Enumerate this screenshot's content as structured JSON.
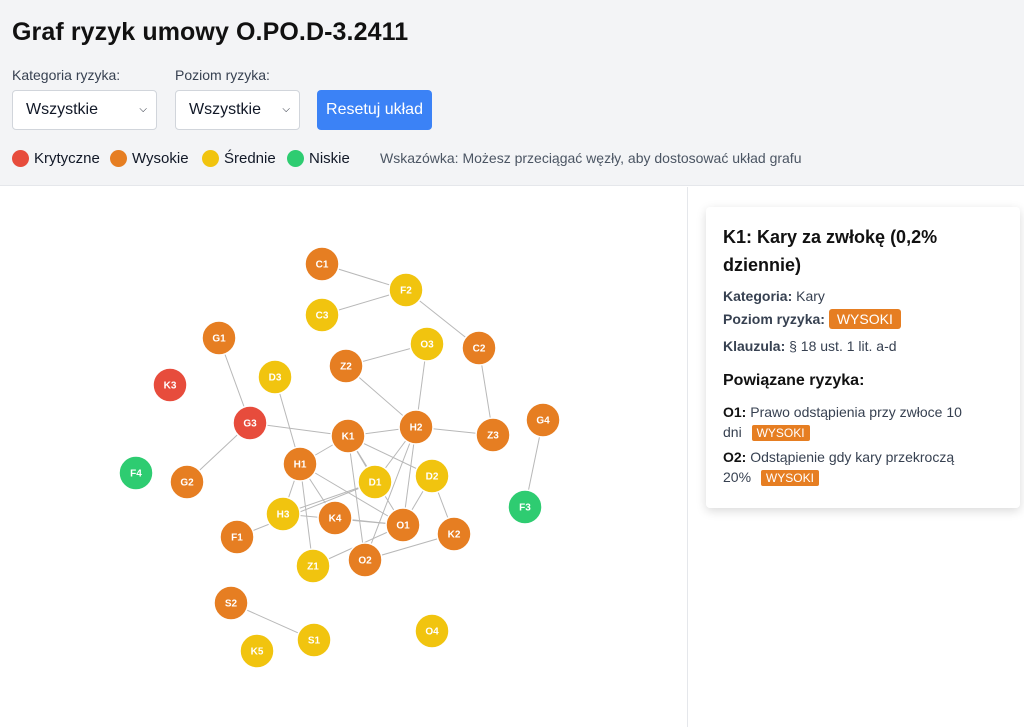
{
  "header": {
    "title": "Graf ryzyk umowy O.PO.D-3.2411",
    "category_label": "Kategoria ryzyka:",
    "category_value": "Wszystkie",
    "level_label": "Poziom ryzyka:",
    "level_value": "Wszystkie",
    "reset_label": "Resetuj układ",
    "hint": "Wskazówka: Możesz przeciągać węzły, aby dostosować układ grafu"
  },
  "legend": [
    {
      "label": "Krytyczne",
      "color": "#e74c3c"
    },
    {
      "label": "Wysokie",
      "color": "#e67e22"
    },
    {
      "label": "Średnie",
      "color": "#f1c40f"
    },
    {
      "label": "Niskie",
      "color": "#2ecc71"
    }
  ],
  "graph": {
    "colors": {
      "krytyczne": "#e74c3c",
      "wysokie": "#e67e22",
      "srednie": "#f1c40f",
      "niskie": "#2ecc71"
    },
    "nodes": [
      {
        "id": "C1",
        "level": "wysokie"
      },
      {
        "id": "F2",
        "level": "srednie"
      },
      {
        "id": "C3",
        "level": "srednie"
      },
      {
        "id": "G1",
        "level": "wysokie"
      },
      {
        "id": "O3",
        "level": "srednie"
      },
      {
        "id": "C2",
        "level": "wysokie"
      },
      {
        "id": "Z2",
        "level": "wysokie"
      },
      {
        "id": "K3",
        "level": "krytyczne"
      },
      {
        "id": "D3",
        "level": "srednie"
      },
      {
        "id": "G3",
        "level": "krytyczne"
      },
      {
        "id": "K1",
        "level": "wysokie"
      },
      {
        "id": "H2",
        "level": "wysokie"
      },
      {
        "id": "Z3",
        "level": "wysokie"
      },
      {
        "id": "G4",
        "level": "wysokie"
      },
      {
        "id": "F4",
        "level": "niskie"
      },
      {
        "id": "H1",
        "level": "wysokie"
      },
      {
        "id": "D1",
        "level": "srednie"
      },
      {
        "id": "D2",
        "level": "srednie"
      },
      {
        "id": "G2",
        "level": "wysokie"
      },
      {
        "id": "F3",
        "level": "niskie"
      },
      {
        "id": "H3",
        "level": "srednie"
      },
      {
        "id": "K4",
        "level": "wysokie"
      },
      {
        "id": "O1",
        "level": "wysokie"
      },
      {
        "id": "F1",
        "level": "wysokie"
      },
      {
        "id": "K2",
        "level": "wysokie"
      },
      {
        "id": "Z1",
        "level": "srednie"
      },
      {
        "id": "O2",
        "level": "wysokie"
      },
      {
        "id": "S2",
        "level": "wysokie"
      },
      {
        "id": "S1",
        "level": "srednie"
      },
      {
        "id": "O4",
        "level": "srednie"
      },
      {
        "id": "K5",
        "level": "srednie"
      }
    ],
    "edges": [
      [
        "C1",
        "F2"
      ],
      [
        "C3",
        "F2"
      ],
      [
        "F2",
        "C2"
      ],
      [
        "C2",
        "Z3"
      ],
      [
        "Z2",
        "O3"
      ],
      [
        "Z2",
        "H2"
      ],
      [
        "O3",
        "O1"
      ],
      [
        "K1",
        "H2"
      ],
      [
        "H2",
        "Z3"
      ],
      [
        "H2",
        "D1"
      ],
      [
        "H2",
        "O2"
      ],
      [
        "G1",
        "G3"
      ],
      [
        "G3",
        "K1"
      ],
      [
        "G3",
        "G2"
      ],
      [
        "D3",
        "H1"
      ],
      [
        "K1",
        "H1"
      ],
      [
        "K1",
        "D1"
      ],
      [
        "K1",
        "D2"
      ],
      [
        "K1",
        "O1"
      ],
      [
        "K1",
        "O2"
      ],
      [
        "H1",
        "H3"
      ],
      [
        "H1",
        "K4"
      ],
      [
        "H1",
        "O1"
      ],
      [
        "H1",
        "Z1"
      ],
      [
        "D1",
        "H3"
      ],
      [
        "D2",
        "K2"
      ],
      [
        "D2",
        "O1"
      ],
      [
        "K4",
        "O1"
      ],
      [
        "H3",
        "O1"
      ],
      [
        "F1",
        "D1"
      ],
      [
        "O1",
        "Z1"
      ],
      [
        "K2",
        "O2"
      ],
      [
        "G4",
        "F3"
      ],
      [
        "S2",
        "S1"
      ]
    ]
  },
  "panel": {
    "title": "K1: Kary za zwłokę (0,2% dziennie)",
    "category_label": "Kategoria:",
    "category_value": "Kary",
    "level_label": "Poziom ryzyka:",
    "level_value": "WYSOKI",
    "clause_label": "Klauzula:",
    "clause_value": "§ 18 ust. 1 lit. a-d",
    "related_heading": "Powiązane ryzyka:",
    "related": [
      {
        "id": "O1:",
        "text": "Prawo odstąpienia przy zwłoce 10 dni",
        "level": "WYSOKI"
      },
      {
        "id": "O2:",
        "text": "Odstąpienie gdy kary przekroczą 20%",
        "level": "WYSOKI"
      }
    ]
  }
}
